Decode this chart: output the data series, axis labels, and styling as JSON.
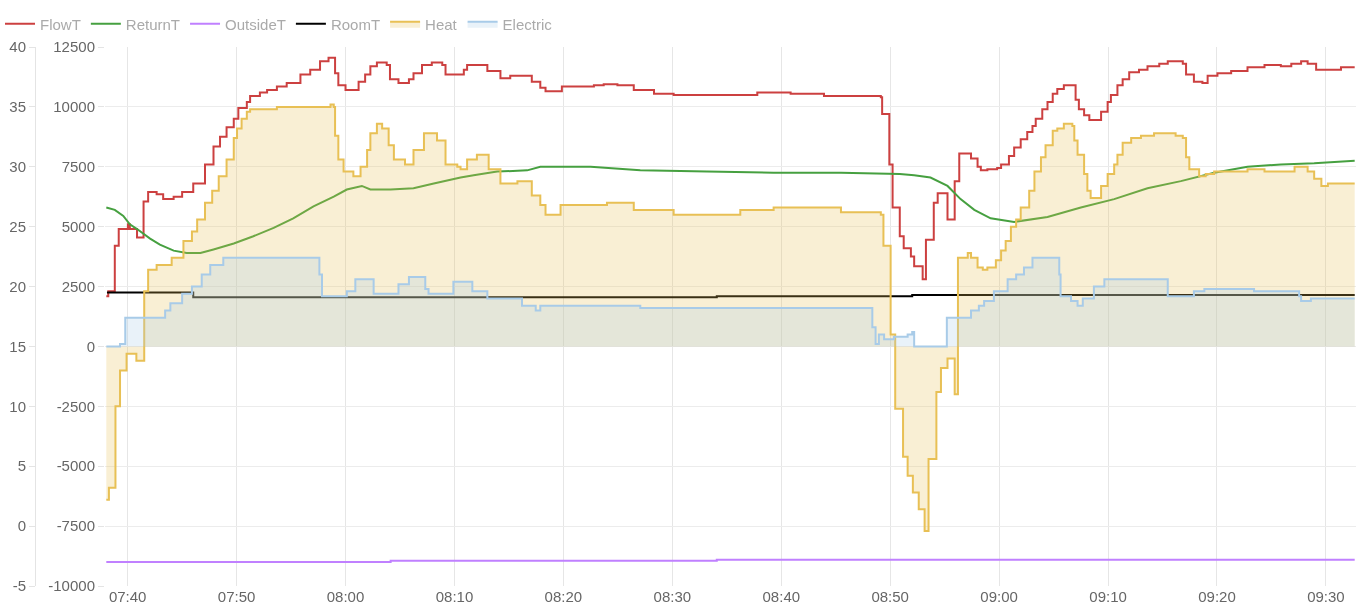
{
  "chart_data": {
    "type": "step",
    "legend": "top left",
    "grid": true,
    "xlim": [
      7.632,
      9.546
    ],
    "xticks": [
      {
        "value": 7.6667,
        "label": "07:40"
      },
      {
        "value": 7.8333,
        "label": "07:50"
      },
      {
        "value": 8,
        "label": "08:00"
      },
      {
        "value": 8.1667,
        "label": "08:10"
      },
      {
        "value": 8.3333,
        "label": "08:20"
      },
      {
        "value": 8.5,
        "label": "08:30"
      },
      {
        "value": 8.6667,
        "label": "08:40"
      },
      {
        "value": 8.8333,
        "label": "08:50"
      },
      {
        "value": 9,
        "label": "09:00"
      },
      {
        "value": 9.1667,
        "label": "09:10"
      },
      {
        "value": 9.3333,
        "label": "09:20"
      },
      {
        "value": 9.5,
        "label": "09:30"
      }
    ],
    "ylim": [
      -5,
      40
    ],
    "yticks": [
      -5,
      0,
      5,
      10,
      15,
      20,
      25,
      30,
      35,
      40
    ],
    "y2lim": [
      -10000,
      12500
    ],
    "y2ticks": [
      -10000,
      -7500,
      -5000,
      -2500,
      0,
      2500,
      5000,
      7500,
      10000,
      12500
    ],
    "series": [
      {
        "name": "FlowT",
        "color": "#cc4040",
        "x": [
          7.634,
          7.637,
          7.647,
          7.653,
          7.667,
          7.67,
          7.681,
          7.691,
          7.698,
          7.711,
          7.721,
          7.737,
          7.75,
          7.767,
          7.785,
          7.798,
          7.808,
          7.818,
          7.829,
          7.836,
          7.849,
          7.854,
          7.869,
          7.88,
          7.895,
          7.91,
          7.931,
          7.946,
          7.961,
          7.974,
          7.984,
          7.989,
          8.0,
          8.02,
          8.03,
          8.038,
          8.048,
          8.063,
          8.068,
          8.081,
          8.097,
          8.104,
          8.117,
          8.132,
          8.148,
          8.153,
          8.181,
          8.186,
          8.217,
          8.237,
          8.252,
          8.285,
          8.298,
          8.306,
          8.331,
          8.38,
          8.395,
          8.416,
          8.441,
          8.472,
          8.502,
          8.63,
          8.681,
          8.732,
          8.819,
          8.821,
          8.832,
          8.837,
          8.848,
          8.854,
          8.865,
          8.87,
          8.883,
          8.888,
          8.9,
          8.906,
          8.921,
          8.932,
          8.939,
          8.957,
          8.967,
          8.972,
          8.982,
          8.997,
          9.003,
          9.015,
          9.023,
          9.033,
          9.043,
          9.051,
          9.056,
          9.066,
          9.074,
          9.082,
          9.089,
          9.099,
          9.117,
          9.122,
          9.13,
          9.138,
          9.156,
          9.166,
          9.171,
          9.181,
          9.189,
          9.199,
          9.214,
          9.227,
          9.245,
          9.258,
          9.281,
          9.286,
          9.298,
          9.311,
          9.319,
          9.334,
          9.355,
          9.38,
          9.406,
          9.431,
          9.447,
          9.462,
          9.472,
          9.485,
          9.523,
          9.544
        ],
        "values": [
          19.2,
          19.6,
          23.4,
          24.8,
          25.2,
          24.8,
          24.1,
          27.1,
          27.9,
          27.7,
          27.3,
          27.5,
          27.9,
          28.6,
          30.2,
          31.7,
          32.5,
          33.3,
          34.0,
          34.9,
          35.4,
          35.9,
          36.2,
          36.4,
          36.7,
          37.0,
          37.7,
          38.1,
          38.8,
          39.1,
          37.8,
          36.8,
          36.4,
          37.1,
          37.7,
          38.4,
          38.7,
          38.5,
          37.3,
          37.0,
          37.3,
          37.8,
          38.5,
          38.7,
          38.5,
          37.7,
          38.1,
          38.5,
          38.0,
          37.4,
          37.6,
          37.1,
          36.6,
          36.3,
          36.7,
          36.8,
          36.9,
          36.8,
          36.4,
          36.1,
          36.0,
          36.2,
          36.1,
          35.9,
          35.8,
          34.4,
          30.2,
          26.6,
          24.2,
          23.2,
          22.5,
          21.7,
          20.6,
          23.9,
          27.0,
          27.8,
          25.6,
          28.8,
          31.1,
          30.7,
          30.0,
          29.7,
          29.8,
          29.9,
          30.2,
          30.9,
          31.6,
          32.3,
          32.9,
          33.4,
          34.0,
          34.8,
          35.4,
          36.1,
          36.5,
          36.8,
          35.6,
          34.8,
          34.3,
          33.9,
          34.6,
          35.4,
          36.0,
          36.8,
          37.3,
          37.9,
          38.1,
          38.4,
          38.6,
          38.8,
          38.6,
          37.7,
          37.1,
          37.0,
          37.6,
          37.8,
          38.0,
          38.3,
          38.5,
          38.4,
          38.6,
          38.8,
          38.6,
          38.1,
          38.3,
          38.3
        ]
      },
      {
        "name": "ReturnT",
        "color": "#46a040",
        "type": "line",
        "x": [
          7.634,
          7.647,
          7.66,
          7.67,
          7.681,
          7.701,
          7.716,
          7.737,
          7.757,
          7.778,
          7.798,
          7.829,
          7.859,
          7.89,
          7.92,
          7.951,
          7.982,
          8.002,
          8.025,
          8.038,
          8.069,
          8.104,
          8.135,
          8.176,
          8.196,
          8.232,
          8.278,
          8.298,
          8.375,
          8.451,
          8.553,
          8.655,
          8.758,
          8.848,
          8.87,
          8.895,
          8.921,
          8.941,
          8.962,
          8.987,
          9.023,
          9.074,
          9.125,
          9.176,
          9.227,
          9.278,
          9.329,
          9.38,
          9.431,
          9.482,
          9.544
        ],
        "values": [
          26.6,
          26.4,
          25.9,
          25.2,
          24.8,
          24.0,
          23.5,
          23.0,
          22.8,
          22.8,
          23.1,
          23.6,
          24.2,
          24.9,
          25.7,
          26.7,
          27.5,
          28.1,
          28.4,
          28.1,
          28.1,
          28.2,
          28.6,
          29.1,
          29.3,
          29.6,
          29.7,
          30.0,
          30.0,
          29.7,
          29.6,
          29.5,
          29.5,
          29.4,
          29.3,
          29.1,
          28.4,
          27.3,
          26.4,
          25.7,
          25.4,
          25.8,
          26.6,
          27.3,
          28.2,
          28.8,
          29.5,
          30.0,
          30.2,
          30.3,
          30.5
        ]
      },
      {
        "name": "OutsideT",
        "color": "#c080ff",
        "x": [
          7.634,
          8.069,
          8.568,
          9.544
        ],
        "values": [
          -3.0,
          -2.9,
          -2.8,
          -2.8
        ]
      },
      {
        "name": "RoomT",
        "color": "#000000",
        "x": [
          7.635,
          7.767,
          8.568,
          8.867,
          9.544
        ],
        "values": [
          19.5,
          19.1,
          19.2,
          19.3,
          19.3
        ]
      },
      {
        "name": "Heat",
        "color": "#e8c055",
        "type": "area",
        "axis": "y2",
        "x": [
          7.634,
          7.638,
          7.648,
          7.655,
          7.665,
          7.68,
          7.692,
          7.698,
          7.711,
          7.734,
          7.752,
          7.765,
          7.773,
          7.785,
          7.796,
          7.806,
          7.818,
          7.829,
          7.834,
          7.841,
          7.849,
          7.854,
          7.895,
          7.977,
          7.982,
          7.984,
          7.989,
          7.997,
          8.012,
          8.023,
          8.033,
          8.038,
          8.048,
          8.056,
          8.066,
          8.074,
          8.091,
          8.104,
          8.12,
          8.14,
          8.153,
          8.171,
          8.176,
          8.186,
          8.201,
          8.219,
          8.237,
          8.263,
          8.285,
          8.298,
          8.306,
          8.329,
          8.4,
          8.441,
          8.502,
          8.604,
          8.655,
          8.758,
          8.819,
          8.823,
          8.834,
          8.841,
          8.853,
          8.86,
          8.868,
          8.877,
          8.886,
          8.892,
          8.904,
          8.911,
          8.921,
          8.932,
          8.937,
          8.952,
          8.957,
          8.967,
          8.975,
          8.982,
          8.995,
          9.003,
          9.01,
          9.018,
          9.026,
          9.033,
          9.046,
          9.054,
          9.064,
          9.071,
          9.082,
          9.089,
          9.099,
          9.112,
          9.115,
          9.12,
          9.13,
          9.135,
          9.14,
          9.156,
          9.166,
          9.176,
          9.181,
          9.189,
          9.202,
          9.217,
          9.237,
          9.27,
          9.281,
          9.286,
          9.291,
          9.306,
          9.316,
          9.329,
          9.38,
          9.406,
          9.452,
          9.472,
          9.482,
          9.493,
          9.503,
          9.544
        ],
        "values": [
          -6400,
          -5900,
          -2500,
          -1000,
          -300,
          -600,
          2300,
          3200,
          3400,
          3700,
          4400,
          4800,
          5300,
          6000,
          6500,
          7100,
          7800,
          8700,
          9100,
          9500,
          9800,
          9900,
          10000,
          10100,
          10000,
          8800,
          7800,
          7300,
          7100,
          7500,
          8200,
          8900,
          9300,
          9100,
          8400,
          7800,
          7600,
          8200,
          8900,
          8600,
          7600,
          7500,
          7400,
          7800,
          8000,
          7400,
          6800,
          6900,
          6300,
          5900,
          5500,
          5900,
          6000,
          5700,
          5500,
          5700,
          5800,
          5600,
          5500,
          4200,
          500,
          -2600,
          -4600,
          -5400,
          -6100,
          -6800,
          -7700,
          -4700,
          -1900,
          -900,
          -500,
          -2000,
          3700,
          3900,
          3700,
          3300,
          3200,
          3300,
          3600,
          4000,
          4400,
          5000,
          5300,
          5800,
          6500,
          7300,
          7900,
          8400,
          9000,
          9100,
          9300,
          9200,
          8600,
          8000,
          7200,
          6500,
          6200,
          6700,
          7200,
          7600,
          8000,
          8500,
          8700,
          8800,
          8900,
          8800,
          8700,
          7900,
          7400,
          7100,
          7200,
          7300,
          7400,
          7300,
          7500,
          7300,
          7000,
          6700,
          6800,
          6800
        ]
      },
      {
        "name": "Electric",
        "color": "#a8cbe8",
        "type": "area",
        "axis": "y2",
        "x": [
          7.634,
          7.655,
          7.663,
          7.724,
          7.732,
          7.75,
          7.765,
          7.78,
          7.793,
          7.813,
          7.96,
          7.964,
          8.002,
          8.015,
          8.043,
          8.081,
          8.097,
          8.122,
          8.127,
          8.165,
          8.194,
          8.217,
          8.27,
          8.291,
          8.298,
          8.451,
          8.806,
          8.811,
          8.816,
          8.824,
          8.839,
          8.86,
          8.867,
          8.87,
          8.92,
          8.957,
          8.969,
          8.977,
          8.992,
          9.013,
          9.026,
          9.038,
          9.051,
          9.092,
          9.094,
          9.11,
          9.12,
          9.128,
          9.145,
          9.161,
          9.258,
          9.298,
          9.314,
          9.39,
          9.459,
          9.462,
          9.477,
          9.544
        ],
        "values": [
          0,
          100,
          1200,
          1500,
          1800,
          2200,
          2500,
          3000,
          3400,
          3700,
          3000,
          2100,
          2300,
          2800,
          2200,
          2600,
          2900,
          2400,
          2200,
          2700,
          2300,
          2000,
          1700,
          1500,
          1700,
          1600,
          800,
          100,
          500,
          300,
          400,
          500,
          600,
          0,
          1200,
          1500,
          1700,
          1900,
          2300,
          2800,
          3000,
          3300,
          3700,
          3000,
          2100,
          1900,
          1700,
          2000,
          2500,
          2800,
          2100,
          2300,
          2400,
          2300,
          2100,
          1900,
          2000,
          2000
        ]
      }
    ]
  }
}
